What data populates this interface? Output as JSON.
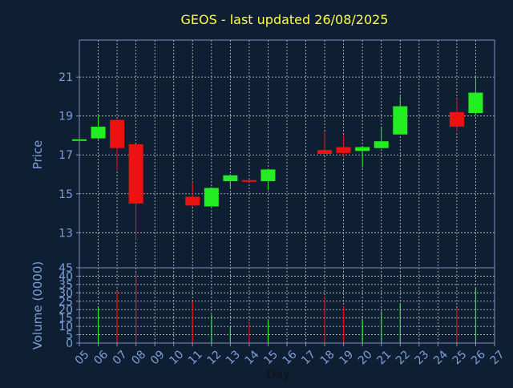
{
  "chart_data": {
    "type": "candlestick",
    "title": "GEOS - last updated 26/08/2025",
    "xlabel": "Day",
    "price_panel": {
      "ylabel": "Price",
      "yticks": [
        13,
        15,
        17,
        19,
        21
      ],
      "ylim": [
        11.2,
        22.9
      ]
    },
    "volume_panel": {
      "ylabel": "Volume (0000)",
      "yticks": [
        0,
        5,
        10,
        15,
        20,
        25,
        30,
        35,
        40,
        45
      ],
      "ylim": [
        0,
        45
      ]
    },
    "x_tick_labels": [
      "05",
      "06",
      "07",
      "08",
      "09",
      "10",
      "11",
      "12",
      "13",
      "14",
      "15",
      "16",
      "17",
      "18",
      "19",
      "20",
      "21",
      "22",
      "23",
      "24",
      "25",
      "26",
      "27"
    ],
    "grid": true,
    "colors": {
      "background": "#0f1f33",
      "axis": "#8090b8",
      "grid": "#c8c8c8",
      "title": "#ffff44",
      "label": "#7d9fd8",
      "up": "#22ee22",
      "down": "#ee1111"
    },
    "candles": [
      {
        "day": "05",
        "open": 17.8,
        "high": 17.85,
        "low": 17.75,
        "close": 17.8,
        "volume": 0
      },
      {
        "day": "06",
        "open": 17.85,
        "high": 19.0,
        "low": 17.8,
        "close": 18.45,
        "volume": 21
      },
      {
        "day": "07",
        "open": 18.8,
        "high": 18.8,
        "low": 16.2,
        "close": 17.35,
        "volume": 31
      },
      {
        "day": "08",
        "open": 17.55,
        "high": 17.55,
        "low": 12.6,
        "close": 14.5,
        "volume": 42
      },
      {
        "day": "11",
        "open": 14.85,
        "high": 15.6,
        "low": 14.35,
        "close": 14.4,
        "volume": 25
      },
      {
        "day": "12",
        "open": 14.35,
        "high": 15.35,
        "low": 14.35,
        "close": 15.3,
        "volume": 17
      },
      {
        "day": "13",
        "open": 15.65,
        "high": 16.0,
        "low": 15.25,
        "close": 15.95,
        "volume": 10
      },
      {
        "day": "14",
        "open": 15.7,
        "high": 15.75,
        "low": 15.6,
        "close": 15.65,
        "volume": 12
      },
      {
        "day": "15",
        "open": 15.65,
        "high": 16.3,
        "low": 15.2,
        "close": 16.25,
        "volume": 14
      },
      {
        "day": "18",
        "open": 17.25,
        "high": 18.2,
        "low": 17.05,
        "close": 17.05,
        "volume": 28
      },
      {
        "day": "19",
        "open": 17.4,
        "high": 18.0,
        "low": 16.9,
        "close": 17.1,
        "volume": 22
      },
      {
        "day": "20",
        "open": 17.2,
        "high": 17.45,
        "low": 16.35,
        "close": 17.4,
        "volume": 14
      },
      {
        "day": "21",
        "open": 17.35,
        "high": 18.45,
        "low": 17.35,
        "close": 17.7,
        "volume": 19
      },
      {
        "day": "22",
        "open": 18.05,
        "high": 20.0,
        "low": 18.05,
        "close": 19.5,
        "volume": 24
      },
      {
        "day": "25",
        "open": 19.2,
        "high": 19.9,
        "low": 18.2,
        "close": 18.45,
        "volume": 21
      },
      {
        "day": "26",
        "open": 19.15,
        "high": 21.1,
        "low": 19.1,
        "close": 20.2,
        "volume": 33
      }
    ]
  }
}
